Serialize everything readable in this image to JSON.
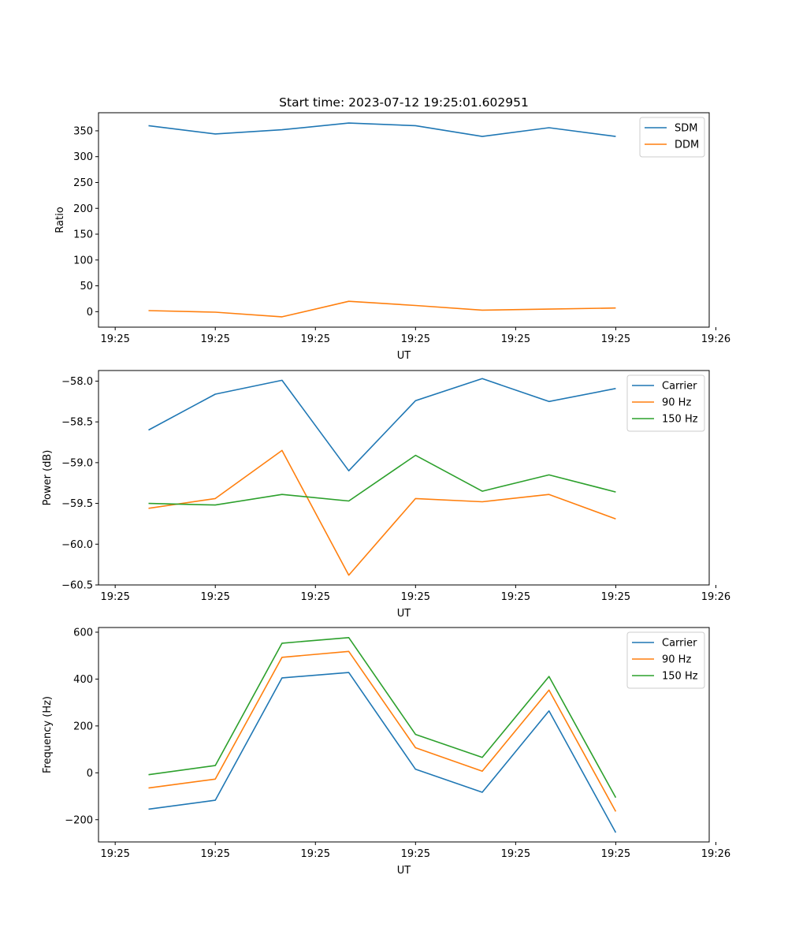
{
  "figure_title": "Start time: 2023-07-12 19:25:01.602951",
  "chart_data": [
    {
      "type": "line",
      "title": "Start time: 2023-07-12 19:25:01.602951",
      "xlabel": "UT",
      "ylabel": "Ratio",
      "x": [
        1,
        2,
        3,
        4,
        5,
        6,
        7,
        8
      ],
      "xlim": [
        0.25,
        9.4
      ],
      "x_ticks": [
        0.5,
        2,
        3.5,
        5,
        6.5,
        8,
        9.5
      ],
      "x_tick_labels": [
        "19:25",
        "19:25",
        "19:25",
        "19:25",
        "19:25",
        "19:25",
        "19:26"
      ],
      "ylim": [
        -30,
        385
      ],
      "y_ticks": [
        0,
        50,
        100,
        150,
        200,
        250,
        300,
        350
      ],
      "y_tick_labels": [
        "0",
        "50",
        "100",
        "150",
        "200",
        "250",
        "300",
        "350"
      ],
      "legend_position": "top-right",
      "series": [
        {
          "name": "SDM",
          "color": "#1f77b4",
          "values": [
            360,
            344,
            352,
            365,
            360,
            339,
            356,
            339
          ]
        },
        {
          "name": "DDM",
          "color": "#ff7f0e",
          "values": [
            2,
            -1,
            -10,
            20,
            12,
            3,
            5,
            7
          ]
        }
      ]
    },
    {
      "type": "line",
      "title": "",
      "xlabel": "UT",
      "ylabel": "Power (dB)",
      "x": [
        1,
        2,
        3,
        4,
        5,
        6,
        7,
        8
      ],
      "xlim": [
        0.25,
        9.4
      ],
      "x_ticks": [
        0.5,
        2,
        3.5,
        5,
        6.5,
        8,
        9.5
      ],
      "x_tick_labels": [
        "19:25",
        "19:25",
        "19:25",
        "19:25",
        "19:25",
        "19:25",
        "19:26"
      ],
      "ylim": [
        -60.5,
        -57.87
      ],
      "y_ticks": [
        -60.5,
        -60.0,
        -59.5,
        -59.0,
        -58.5,
        -58.0
      ],
      "y_tick_labels": [
        "−60.5",
        "−60.0",
        "−59.5",
        "−59.0",
        "−58.5",
        "−58.0"
      ],
      "legend_position": "top-right",
      "series": [
        {
          "name": "Carrier",
          "color": "#1f77b4",
          "values": [
            -58.6,
            -58.16,
            -57.99,
            -59.1,
            -58.24,
            -57.97,
            -58.25,
            -58.09
          ]
        },
        {
          "name": "90 Hz",
          "color": "#ff7f0e",
          "values": [
            -59.56,
            -59.44,
            -58.85,
            -60.38,
            -59.44,
            -59.48,
            -59.39,
            -59.69
          ]
        },
        {
          "name": "150 Hz",
          "color": "#2ca02c",
          "values": [
            -59.5,
            -59.52,
            -59.39,
            -59.47,
            -58.91,
            -59.35,
            -59.15,
            -59.36
          ]
        }
      ]
    },
    {
      "type": "line",
      "title": "",
      "xlabel": "UT",
      "ylabel": "Frequency (Hz)",
      "x": [
        1,
        2,
        3,
        4,
        5,
        6,
        7,
        8
      ],
      "xlim": [
        0.25,
        9.4
      ],
      "x_ticks": [
        0.5,
        2,
        3.5,
        5,
        6.5,
        8,
        9.5
      ],
      "x_tick_labels": [
        "19:25",
        "19:25",
        "19:25",
        "19:25",
        "19:25",
        "19:25",
        "19:26"
      ],
      "ylim": [
        -295,
        620
      ],
      "y_ticks": [
        -200,
        0,
        200,
        400,
        600
      ],
      "y_tick_labels": [
        "−200",
        "0",
        "200",
        "400",
        "600"
      ],
      "legend_position": "top-right",
      "series": [
        {
          "name": "Carrier",
          "color": "#1f77b4",
          "values": [
            -155,
            -117,
            405,
            428,
            15,
            -83,
            264,
            -255
          ]
        },
        {
          "name": "90 Hz",
          "color": "#ff7f0e",
          "values": [
            -65,
            -27,
            493,
            518,
            107,
            7,
            353,
            -165
          ]
        },
        {
          "name": "150 Hz",
          "color": "#2ca02c",
          "values": [
            -8,
            31,
            553,
            577,
            164,
            66,
            411,
            -106
          ]
        }
      ]
    }
  ]
}
